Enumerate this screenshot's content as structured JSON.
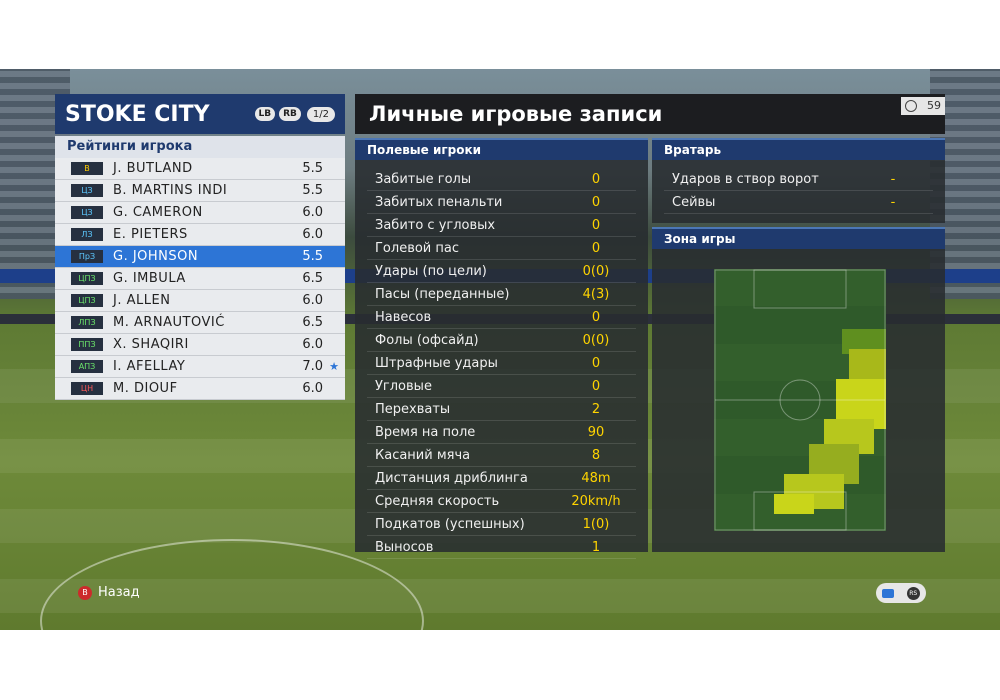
{
  "team": {
    "name": "STOKE CITY",
    "lb": "LB",
    "rb": "RB",
    "page": "1/2",
    "ratings_title": "Рейтинги игрока",
    "players": [
      {
        "pos": "В",
        "posClass": "gk",
        "name": "J. BUTLAND",
        "rating": "5.5",
        "star": ""
      },
      {
        "pos": "ЦЗ",
        "posClass": "df",
        "name": "B. MARTINS INDI",
        "rating": "5.5",
        "star": ""
      },
      {
        "pos": "ЦЗ",
        "posClass": "df",
        "name": "G. CAMERON",
        "rating": "6.0",
        "star": ""
      },
      {
        "pos": "ЛЗ",
        "posClass": "df",
        "name": "E. PIETERS",
        "rating": "6.0",
        "star": ""
      },
      {
        "pos": "ПрЗ",
        "posClass": "df",
        "name": "G. JOHNSON",
        "rating": "5.5",
        "star": "",
        "selected": true
      },
      {
        "pos": "ЦПЗ",
        "posClass": "mf",
        "name": "G. IMBULA",
        "rating": "6.5",
        "star": ""
      },
      {
        "pos": "ЦПЗ",
        "posClass": "mf",
        "name": "J. ALLEN",
        "rating": "6.0",
        "star": ""
      },
      {
        "pos": "ЛПЗ",
        "posClass": "mf",
        "name": "M. ARNAUTOVIĆ",
        "rating": "6.5",
        "star": ""
      },
      {
        "pos": "ППЗ",
        "posClass": "mf",
        "name": "X. SHAQIRI",
        "rating": "6.0",
        "star": ""
      },
      {
        "pos": "АПЗ",
        "posClass": "mf",
        "name": "I. AFELLAY",
        "rating": "7.0",
        "star": "★"
      },
      {
        "pos": "ЦН",
        "posClass": "fw",
        "name": "M. DIOUF",
        "rating": "6.0",
        "star": ""
      }
    ]
  },
  "records": {
    "title": "Личные игровые записи",
    "timer": "59",
    "field_title": "Полевые игроки",
    "field_stats": [
      {
        "label": "Забитые голы",
        "value": "0"
      },
      {
        "label": "Забитых пенальти",
        "value": "0"
      },
      {
        "label": "Забито с угловых",
        "value": "0"
      },
      {
        "label": "Голевой пас",
        "value": "0"
      },
      {
        "label": "Удары (по цели)",
        "value": "0(0)"
      },
      {
        "label": "Пасы (переданные)",
        "value": "4(3)"
      },
      {
        "label": "Навесов",
        "value": "0"
      },
      {
        "label": "Фолы (офсайд)",
        "value": "0(0)"
      },
      {
        "label": "Штрафные удары",
        "value": "0"
      },
      {
        "label": "Угловые",
        "value": "0"
      },
      {
        "label": "Перехваты",
        "value": "2"
      },
      {
        "label": "Время на поле",
        "value": "90"
      },
      {
        "label": "Касаний мяча",
        "value": "8"
      },
      {
        "label": "Дистанция дриблинга",
        "value": "48m"
      },
      {
        "label": "Средняя скорость",
        "value": "20km/h"
      },
      {
        "label": "Подкатов (успешных)",
        "value": "1(0)"
      },
      {
        "label": "Выносов",
        "value": "1"
      }
    ],
    "gk_title": "Вратарь",
    "gk_stats": [
      {
        "label": "Ударов в створ ворот",
        "value": "-"
      },
      {
        "label": "Сейвы",
        "value": "-"
      }
    ],
    "zone_title": "Зона игры"
  },
  "hints": {
    "back_label": "Назад",
    "back_button": "B",
    "rs_button": "RS"
  },
  "colors": {
    "accent_blue": "#2d75d6",
    "header_navy": "#1f3a6e",
    "stat_yellow": "#ffd400"
  }
}
